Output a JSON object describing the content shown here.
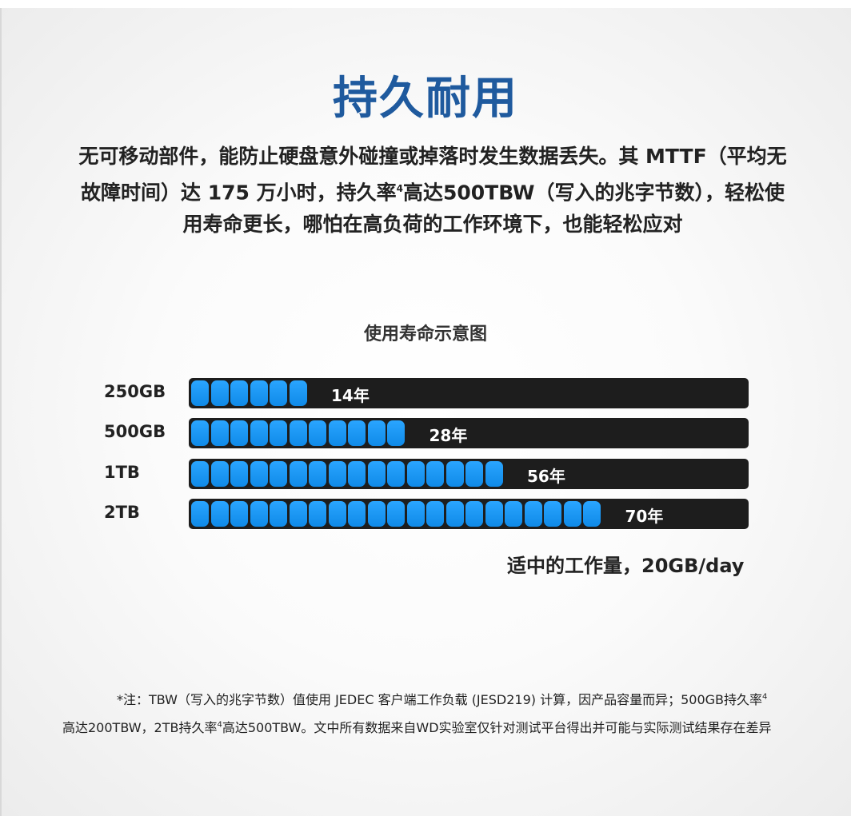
{
  "title": "持久耐用",
  "intro": {
    "line1": "无可移动部件，能防止硬盘意外碰撞或掉落时发生数据丢失。其 MTTF（平均无",
    "line2a": "故障时间）达 175 万小时，持久率",
    "line2sup": "4",
    "line2b": "高达500TBW（写入的兆字节数），轻松使",
    "line3": "用寿命更长，哪怕在高负荷的工作环境下，也能轻松应对"
  },
  "chart_data": {
    "type": "bar",
    "title": "使用寿命示意图",
    "categories": [
      "250GB",
      "500GB",
      "1TB",
      "2TB"
    ],
    "values": [
      14,
      28,
      56,
      70
    ],
    "value_labels": [
      "14年",
      "28年",
      "56年",
      "70年"
    ],
    "segments": [
      6,
      11,
      16,
      21
    ],
    "max_segments": 28,
    "subtitle": "适中的工作量，20GB/day",
    "colors": {
      "fill": "#1a9af5",
      "track": "#1d1d1d"
    }
  },
  "footnote": {
    "line1a": "*注：TBW（写入的兆字节数）值使用 JEDEC 客户端工作负载 (JESD219) 计算，因产品容量而异；500GB持久率",
    "line1sup": "4",
    "line2a": "高达200TBW，2TB持久率",
    "line2sup": "4",
    "line2b": "高达500TBW。文中所有数据来自WD实验室仅针对测试平台得出并可能与实际测试结果存在差异"
  }
}
